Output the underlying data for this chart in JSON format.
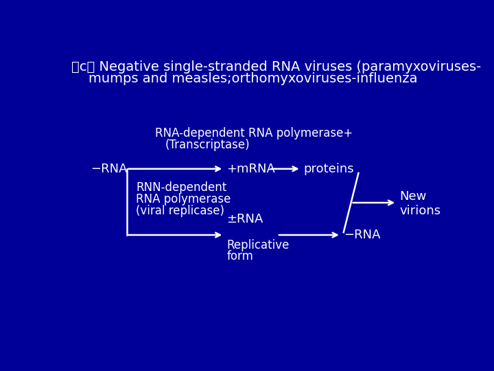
{
  "bg_color": "#000099",
  "text_color": "#ffffff",
  "title_line1": "（c） Negative single-stranded RNA viruses (paramyxoviruses-",
  "title_line2": "    mumps and measles;orthomyxoviruses-influenza",
  "label_polymerase": "RNA-dependent RNA polymerase+",
  "label_transcriptase": "(Transcriptase)",
  "label_minus_rna": "−RNA",
  "label_plus_mrna": "+mRNA",
  "label_proteins": "proteins",
  "label_rnn_dep": "RNN-dependent",
  "label_rna_pol": "RNA polymerase",
  "label_viral_rep": "(viral replicase)",
  "label_pm_rna": "±RNA",
  "label_replicative": "Replicative",
  "label_form": "form",
  "label_minus_rna2": "−RNA",
  "label_new": "New",
  "label_virions": "virions",
  "arrow_color": "#ffffff",
  "line_color": "#ffffff",
  "font_size_title": 14,
  "font_size_main": 12,
  "font_size_label": 11
}
